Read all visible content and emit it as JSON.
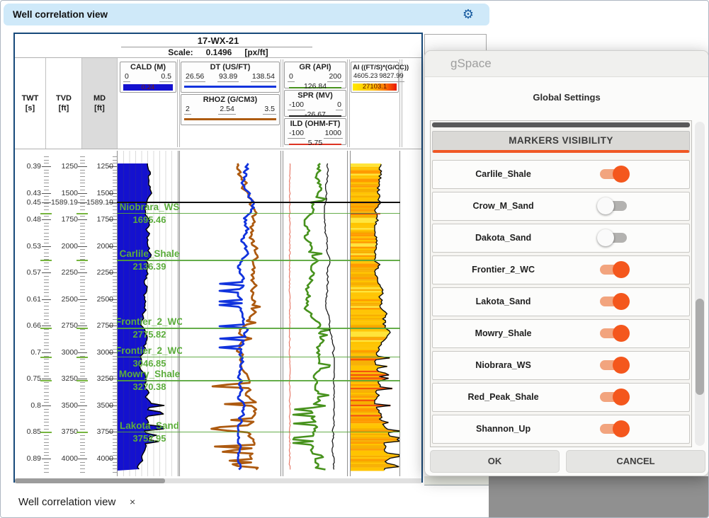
{
  "window": {
    "title": "Well correlation view",
    "tab": {
      "label": "Well correlation view",
      "close_icon": "×"
    },
    "gear_icon": "⚙"
  },
  "well_panel": {
    "well_name": "17-WX-21",
    "scale_label": "Scale:",
    "scale_value": "0.1496",
    "scale_unit": "[px/ft]",
    "depth_columns": [
      {
        "label": "TWT",
        "unit": "[s]"
      },
      {
        "label": "TVD",
        "unit": "[ft]"
      },
      {
        "label": "MD",
        "unit": "[ft]"
      }
    ],
    "curve_headers": {
      "cald": {
        "name": "CALD (M)",
        "min": "0",
        "max": "0.5",
        "value": "0.24",
        "color": "#1411cf"
      },
      "dt": {
        "name": "DT (US/FT)",
        "min": "26.56",
        "mid": "93.89",
        "max": "138.54",
        "color": "#1133dd"
      },
      "rhoz": {
        "name": "RHOZ (G/CM3)",
        "min": "2",
        "mid": "2.54",
        "max": "3.5",
        "color": "#ad5a10"
      },
      "gr": {
        "name": "GR (API)",
        "min": "0",
        "max": "200",
        "value": "126.84",
        "color": "#47921d"
      },
      "spr": {
        "name": "SPR (MV)",
        "min": "-100",
        "max": "0",
        "value": "-26.67",
        "color": "#1a1a1a"
      },
      "ild": {
        "name": "ILD (OHM-FT)",
        "min": "-100",
        "max": "1000",
        "value": "5.75",
        "color": "#dd3322"
      },
      "ai": {
        "name": "AI ((FT/S)*(G/CC))",
        "min": "4605.23",
        "max": "9827.99",
        "value": "27103.1"
      }
    },
    "depth_ticks": [
      {
        "twt": "0.39",
        "depth": 1250,
        "label": "1250"
      },
      {
        "twt": "0.43",
        "depth": 1500,
        "label": "1500"
      },
      {
        "twt": "0.45",
        "depth": 1589.19,
        "label": "1589.19"
      },
      {
        "twt": "0.48",
        "depth": 1750,
        "label": "1750"
      },
      {
        "twt": "0.53",
        "depth": 2000,
        "label": "2000"
      },
      {
        "twt": "0.57",
        "depth": 2250,
        "label": "2250"
      },
      {
        "twt": "0.61",
        "depth": 2500,
        "label": "2500"
      },
      {
        "twt": "0.66",
        "depth": 2750,
        "label": "2750"
      },
      {
        "twt": "0.7",
        "depth": 3000,
        "label": "3000"
      },
      {
        "twt": "0.75",
        "depth": 3250,
        "label": "3250"
      },
      {
        "twt": "0.8",
        "depth": 3500,
        "label": "3500"
      },
      {
        "twt": "0.85",
        "depth": 3750,
        "label": "3750"
      },
      {
        "twt": "0.89",
        "depth": 4000,
        "label": "4000"
      }
    ],
    "markers": [
      {
        "name": "Niobrara_WS",
        "depth_label": "1695.46",
        "depth": 1695.46
      },
      {
        "name": "Carlile_Shale",
        "depth_label": "2136.39",
        "depth": 2136.39
      },
      {
        "name": "Frontier_2_WC",
        "depth_label": "2775.82",
        "depth": 2775.82
      },
      {
        "name": "Frontier_2_WC",
        "depth_label": "3046.85",
        "depth": 3046.85
      },
      {
        "name": "Mowry_Shale",
        "depth_label": "3270.38",
        "depth": 3270.38
      },
      {
        "name": "Lakota_Sand",
        "depth_label": "3752.95",
        "depth": 3752.95
      }
    ],
    "marker_color": "#55a437",
    "datum_depth": 1589.19
  },
  "dialog": {
    "app_title": "gSpace",
    "heading": "Global Settings",
    "section_title": "MARKERS VISIBILITY",
    "markers": [
      {
        "label": "Carlile_Shale",
        "enabled": true
      },
      {
        "label": "Crow_M_Sand",
        "enabled": false
      },
      {
        "label": "Dakota_Sand",
        "enabled": false
      },
      {
        "label": "Frontier_2_WC",
        "enabled": true
      },
      {
        "label": "Lakota_Sand",
        "enabled": true
      },
      {
        "label": "Mowry_Shale",
        "enabled": true
      },
      {
        "label": "Niobrara_WS",
        "enabled": true
      },
      {
        "label": "Red_Peak_Shale",
        "enabled": true
      },
      {
        "label": "Shannon_Up",
        "enabled": true
      }
    ],
    "ok_label": "OK",
    "cancel_label": "CANCEL",
    "accent_color": "#f05723"
  }
}
